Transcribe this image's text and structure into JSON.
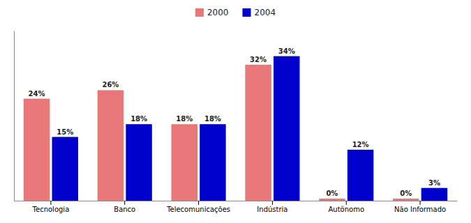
{
  "chart_data": {
    "type": "bar",
    "categories": [
      "Tecnologia",
      "Banco",
      "Telecomunicações",
      "Indústria",
      "Autônomo",
      "Não Informado"
    ],
    "series": [
      {
        "name": "2000",
        "color": "#E87878",
        "values": [
          24,
          26,
          18,
          32,
          0.5,
          0.5
        ],
        "value_labels": [
          "24%",
          "26%",
          "18%",
          "32%",
          "0%",
          "0%"
        ]
      },
      {
        "name": "2004",
        "color": "#0000CC",
        "values": [
          15,
          18,
          18,
          34,
          12,
          3
        ],
        "value_labels": [
          "15%",
          "18%",
          "18%",
          "34%",
          "12%",
          "3%"
        ]
      }
    ],
    "ylim": [
      0,
      40
    ],
    "data_labels": true,
    "tick_labels": "x",
    "legend": "top"
  }
}
